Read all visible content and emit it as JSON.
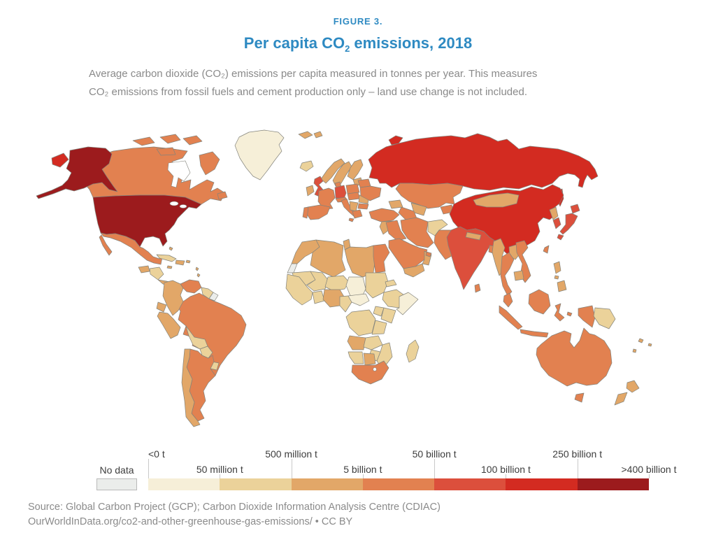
{
  "figure": {
    "kicker": "FIGURE 3.",
    "title_pre": "Per capita CO",
    "title_sub": "2",
    "title_post": " emissions, 2018",
    "subtitle_line1": "Average carbon dioxide (CO₂) emissions per capita measured in tonnes per year. This measures",
    "subtitle_line2": "CO₂ emissions from fossil fuels and cement production only – land use change is not included."
  },
  "legend": {
    "no_data_label": "No data",
    "ticks": [
      {
        "label": "<0 t",
        "row": "top",
        "align": "left"
      },
      {
        "label": "50 million t",
        "row": "bottom",
        "align": "center"
      },
      {
        "label": "500 million t",
        "row": "top",
        "align": "center"
      },
      {
        "label": "5 billion t",
        "row": "bottom",
        "align": "center"
      },
      {
        "label": "50 billion t",
        "row": "top",
        "align": "center"
      },
      {
        "label": "100 billion t",
        "row": "bottom",
        "align": "center"
      },
      {
        "label": "250 billion t",
        "row": "top",
        "align": "center"
      },
      {
        "label": ">400 billion t",
        "row": "bottom",
        "align": "center"
      }
    ]
  },
  "source": {
    "line1": "Source: Global Carbon Project (GCP); Carbon Dioxide Information Analysis Centre (CDIAC)",
    "line2": "OurWorldInData.org/co2-and-other-greenhouse-gas-emissions/ • CC BY"
  },
  "chart_data": {
    "type": "heatmap",
    "subtype": "choropleth_world_map",
    "title": "Per capita CO₂ emissions, 2018",
    "year": "2018",
    "unit": "tonnes per year",
    "legend_position": "bottom",
    "scale": {
      "no_data_label": "No data",
      "no_data_color": "#ebedeb",
      "colors": [
        "#f6efd8",
        "#ebd29a",
        "#e2a768",
        "#e28150",
        "#dc4f3c",
        "#d32b21",
        "#9c1b1d"
      ],
      "tick_labels": [
        "<0 t",
        "50 million t",
        "500 million t",
        "5 billion t",
        "50 billion t",
        "100 billion t",
        "250 billion t",
        ">400 billion t"
      ]
    },
    "regions": {
      "united-states": 7,
      "canada": 4,
      "greenland": 1,
      "russia": 6,
      "mexico": 4,
      "guatemala": 3,
      "honduras-nicaragua": 2,
      "costa-rica-panama": 3,
      "cuba": 2,
      "hispaniola": 3,
      "caribbean-islands": 3,
      "venezuela": 4,
      "colombia": 3,
      "guyana-suriname": 2,
      "french-guiana": 0,
      "ecuador": 3,
      "peru": 3,
      "brazil": 4,
      "bolivia": 2,
      "paraguay": 2,
      "uruguay": 2,
      "argentina": 4,
      "chile": 3,
      "morocco": 3,
      "western-sahara": 0,
      "algeria": 3,
      "tunisia": 3,
      "libya": 3,
      "egypt": 4,
      "mauritania": 2,
      "mali": 2,
      "niger": 2,
      "chad": 1,
      "sudan": 2,
      "eritrea-djibouti": 2,
      "west-africa": 2,
      "ghana-togo-benin": 2,
      "nigeria": 3,
      "cameroon": 2,
      "central-african-republic": 1,
      "ethiopia": 2,
      "somalia": 1,
      "kenya": 2,
      "uganda": 2,
      "dr-congo": 2,
      "tanzania": 2,
      "angola": 3,
      "zambia": 2,
      "mozambique": 2,
      "zimbabwe": 2,
      "namibia": 2,
      "botswana": 3,
      "south-africa": 4,
      "madagascar": 2,
      "iceland": 2,
      "united-kingdom": 5,
      "ireland": 3,
      "norway": 3,
      "sweden": 3,
      "finland": 3,
      "denmark": 4,
      "baltic-states": 3,
      "germany": 5,
      "poland": 4,
      "france": 4,
      "spain": 4,
      "portugal": 4,
      "italy": 4,
      "switzerland-austria": 4,
      "czechia-hungary": 4,
      "romania": 3,
      "balkans": 3,
      "greece": 4,
      "bulgaria": 4,
      "belarus": 4,
      "ukraine": 4,
      "svalbard": 3,
      "kazakhstan": 4,
      "uzbekistan": 3,
      "turkmenistan": 4,
      "kyrgyzstan-tajikistan": 4,
      "caucasus": 3,
      "turkey": 4,
      "syria-levant": 3,
      "iraq": 4,
      "iran": 4,
      "afghanistan": 2,
      "pakistan": 4,
      "saudi-arabia": 4,
      "yemen": 3,
      "oman": 3,
      "gulf-states": 4,
      "india": 5,
      "nepal": 3,
      "bangladesh": 4,
      "sri-lanka": 4,
      "china": 6,
      "mongolia": 3,
      "north-korea": 3,
      "south-korea": 5,
      "japan": 5,
      "taiwan": 4,
      "myanmar": 3,
      "thailand": 4,
      "laos": 3,
      "vietnam": 4,
      "cambodia": 3,
      "malaysia": 4,
      "indonesia": 4,
      "papua-new-guinea": 2,
      "philippines": 3,
      "australia": 4,
      "new-zealand": 3,
      "pacific-islands": 3
    }
  }
}
